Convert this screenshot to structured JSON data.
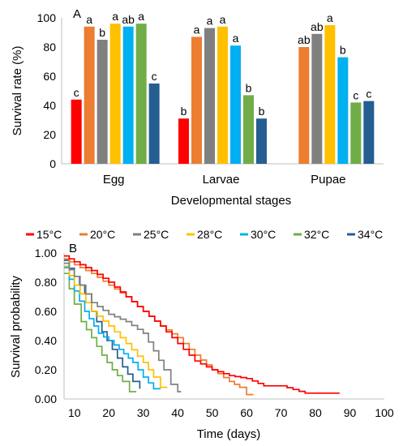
{
  "chart_data": [
    {
      "panel_label": "A",
      "type": "bar",
      "xlabel": "Developmental stages",
      "ylabel": "Survival rate (%)",
      "ylim": [
        0,
        100
      ],
      "yticks": [
        "0",
        "20",
        "40",
        "60",
        "80",
        "100"
      ],
      "categories": [
        "Egg",
        "Larvae",
        "Pupae"
      ],
      "series": [
        {
          "key": "15",
          "color": "#ff0000",
          "values": [
            44,
            31,
            null
          ],
          "letters": [
            "c",
            "b",
            ""
          ]
        },
        {
          "key": "20",
          "color": "#ed7d31",
          "values": [
            94,
            87,
            80
          ],
          "letters": [
            "a",
            "a",
            "ab"
          ]
        },
        {
          "key": "25",
          "color": "#808080",
          "values": [
            85,
            93,
            89
          ],
          "letters": [
            "b",
            "a",
            "ab"
          ]
        },
        {
          "key": "28",
          "color": "#ffc000",
          "values": [
            96,
            94,
            95
          ],
          "letters": [
            "a",
            "a",
            "a"
          ]
        },
        {
          "key": "30",
          "color": "#00b0f0",
          "values": [
            94,
            81,
            73
          ],
          "letters": [
            "ab",
            "a",
            "b"
          ]
        },
        {
          "key": "32",
          "color": "#70ad47",
          "values": [
            96,
            47,
            42
          ],
          "letters": [
            "a",
            "b",
            "c"
          ]
        },
        {
          "key": "34",
          "color": "#255e91",
          "values": [
            55,
            31,
            43
          ],
          "letters": [
            "c",
            "b",
            "c"
          ]
        }
      ]
    },
    {
      "panel_label": "B",
      "type": "line",
      "xlabel": "Time (days)",
      "ylabel": "Survival probability",
      "xlim": [
        7,
        100
      ],
      "ylim": [
        0,
        1
      ],
      "xticks": [
        "10",
        "20",
        "30",
        "40",
        "50",
        "60",
        "70",
        "80",
        "90",
        "100"
      ],
      "yticks": [
        "0.00",
        "0.20",
        "0.40",
        "0.60",
        "0.80",
        "1.00"
      ],
      "legend": [
        "15°C",
        "20°C",
        "25°C",
        "28°C",
        "30°C",
        "32°C",
        "34°C"
      ],
      "series": [
        {
          "name": "15°C",
          "color": "#ff0000",
          "points": [
            [
              7,
              0.98
            ],
            [
              10,
              0.94
            ],
            [
              15,
              0.88
            ],
            [
              20,
              0.8
            ],
            [
              25,
              0.7
            ],
            [
              30,
              0.6
            ],
            [
              35,
              0.5
            ],
            [
              40,
              0.38
            ],
            [
              45,
              0.26
            ],
            [
              50,
              0.2
            ],
            [
              55,
              0.16
            ],
            [
              60,
              0.14
            ],
            [
              65,
              0.09
            ],
            [
              70,
              0.09
            ],
            [
              77,
              0.04
            ],
            [
              87,
              0.04
            ]
          ]
        },
        {
          "name": "20°C",
          "color": "#ed7d31",
          "points": [
            [
              7,
              0.96
            ],
            [
              10,
              0.92
            ],
            [
              15,
              0.86
            ],
            [
              20,
              0.78
            ],
            [
              25,
              0.7
            ],
            [
              30,
              0.6
            ],
            [
              35,
              0.5
            ],
            [
              40,
              0.42
            ],
            [
              45,
              0.3
            ],
            [
              50,
              0.2
            ],
            [
              55,
              0.12
            ],
            [
              58,
              0.08
            ],
            [
              60,
              0.03
            ],
            [
              62,
              0.03
            ]
          ]
        },
        {
          "name": "25°C",
          "color": "#808080",
          "points": [
            [
              7,
              0.93
            ],
            [
              10,
              0.84
            ],
            [
              15,
              0.66
            ],
            [
              20,
              0.58
            ],
            [
              25,
              0.53
            ],
            [
              30,
              0.45
            ],
            [
              33,
              0.33
            ],
            [
              36,
              0.2
            ],
            [
              38,
              0.1
            ],
            [
              40,
              0.05
            ],
            [
              41,
              0.05
            ]
          ]
        },
        {
          "name": "28°C",
          "color": "#ffc000",
          "points": [
            [
              7,
              0.91
            ],
            [
              10,
              0.78
            ],
            [
              15,
              0.6
            ],
            [
              20,
              0.5
            ],
            [
              25,
              0.38
            ],
            [
              30,
              0.25
            ],
            [
              33,
              0.15
            ],
            [
              35,
              0.08
            ],
            [
              37,
              0.08
            ]
          ]
        },
        {
          "name": "30°C",
          "color": "#00b0f0",
          "points": [
            [
              7,
              0.9
            ],
            [
              10,
              0.74
            ],
            [
              13,
              0.6
            ],
            [
              17,
              0.45
            ],
            [
              20,
              0.4
            ],
            [
              23,
              0.34
            ],
            [
              27,
              0.25
            ],
            [
              30,
              0.15
            ],
            [
              33,
              0.07
            ],
            [
              35,
              0.07
            ]
          ]
        },
        {
          "name": "32°C",
          "color": "#70ad47",
          "points": [
            [
              7,
              0.86
            ],
            [
              10,
              0.65
            ],
            [
              12,
              0.53
            ],
            [
              15,
              0.42
            ],
            [
              18,
              0.3
            ],
            [
              21,
              0.2
            ],
            [
              24,
              0.12
            ],
            [
              26,
              0.05
            ],
            [
              28,
              0.05
            ]
          ]
        },
        {
          "name": "34°C",
          "color": "#255e91",
          "points": [
            [
              7,
              0.95
            ],
            [
              10,
              0.84
            ],
            [
              13,
              0.72
            ],
            [
              15,
              0.6
            ],
            [
              18,
              0.46
            ],
            [
              21,
              0.34
            ],
            [
              24,
              0.22
            ],
            [
              27,
              0.12
            ],
            [
              29,
              0.07
            ]
          ]
        }
      ]
    }
  ]
}
